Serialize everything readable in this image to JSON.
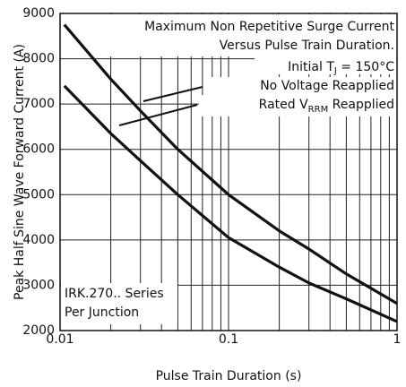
{
  "chart_data": {
    "type": "line",
    "x_label": "Pulse Train Duration (s)",
    "y_label": "Peak Half Sine Wave Forward Current (A)",
    "log_x": true,
    "grid": true,
    "xlim": [
      0.01,
      1
    ],
    "ylim": [
      2000,
      9000
    ],
    "xticks": [
      0.01,
      0.1,
      1
    ],
    "x_minor_ticks": [
      0.02,
      0.03,
      0.04,
      0.05,
      0.06,
      0.07,
      0.08,
      0.09,
      0.2,
      0.3,
      0.4,
      0.5,
      0.6,
      0.7,
      0.8,
      0.9
    ],
    "yticks": [
      2000,
      3000,
      4000,
      5000,
      6000,
      7000,
      8000,
      9000
    ],
    "title_lines": [
      "Maximum Non Repetitive Surge Current",
      "Versus Pulse Train Duration."
    ],
    "condition_parts": [
      "Initial T",
      "J",
      " = 150°C"
    ],
    "note_lines": [
      "IRK.270.. Series",
      "Per Junction"
    ],
    "x": [
      0.0106,
      0.02,
      0.03,
      0.05,
      0.1,
      0.2,
      0.3,
      0.5,
      1
    ],
    "series": [
      {
        "name": "No Voltage Reapplied",
        "color": "#111111",
        "values": [
          8750,
          7550,
          6850,
          6000,
          5000,
          4200,
          3800,
          3250,
          2600
        ]
      },
      {
        "name_parts": [
          "Rated V",
          "RRM",
          " Reapplied"
        ],
        "color": "#111111",
        "values": [
          7400,
          6350,
          5750,
          5000,
          4050,
          3400,
          3050,
          2700,
          2200
        ]
      }
    ]
  }
}
